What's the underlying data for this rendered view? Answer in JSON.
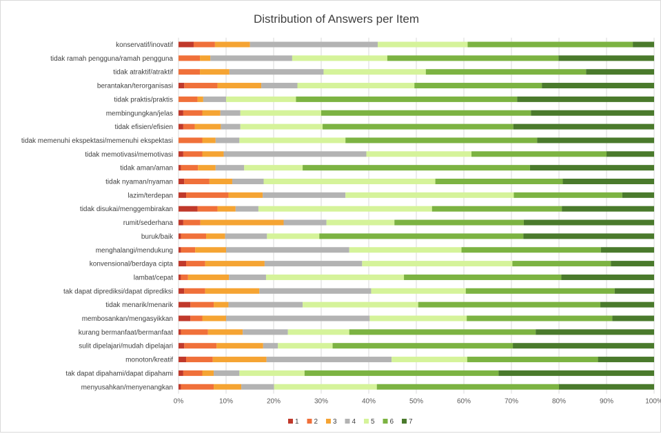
{
  "chart_data": {
    "type": "bar",
    "orientation": "horizontal",
    "stacked": "percent",
    "title": "Distribution of Answers per Item",
    "xlabel": "",
    "ylabel": "",
    "xlim": [
      0,
      100
    ],
    "x_ticks": [
      "0%",
      "10%",
      "20%",
      "30%",
      "40%",
      "50%",
      "60%",
      "70%",
      "80%",
      "90%",
      "100%"
    ],
    "grid": "vertical",
    "legend_position": "bottom",
    "categories": [
      "konservatif/inovatif",
      "tidak ramah pengguna/ramah pengguna",
      "tidak atraktif/atraktif",
      "berantakan/terorganisasi",
      "tidak praktis/praktis",
      "membingungkan/jelas",
      "tidak efisien/efisien",
      "tidak memenuhi ekspektasi/memenuhi ekspektasi",
      "tidak memotivasi/memotivasi",
      "tidak aman/aman",
      "tidak nyaman/nyaman",
      "lazim/terdepan",
      "tidak disukai/menggembirakan",
      "rumit/sederhana",
      "buruk/baik",
      "menghalangi/mendukung",
      "konvensional/berdaya cipta",
      "lambat/cepat",
      "tak dapat diprediksi/dapat diprediksi",
      "tidak menarik/menarik",
      "membosankan/mengasyikkan",
      "kurang bermanfaat/bermanfaat",
      "sulit dipelajari/mudah dipelajari",
      "monoton/kreatif",
      "tak dapat dipahami/dapat dipahami",
      "menyusahkan/menyenangkan"
    ],
    "series": [
      {
        "name": "1",
        "color": "#c0392b",
        "values": [
          3.2,
          0,
          0,
          1.2,
          0,
          1,
          1,
          0,
          1,
          0.5,
          1.2,
          1.6,
          4,
          1,
          0.5,
          0.5,
          1.6,
          0.5,
          1.2,
          2.5,
          2.5,
          0.5,
          1.2,
          1.6,
          1,
          0.5
        ]
      },
      {
        "name": "2",
        "color": "#f0703a",
        "values": [
          4.5,
          4.5,
          4.5,
          7,
          4,
          4,
          2.4,
          5,
          4,
          3.6,
          5.3,
          8.9,
          4.2,
          3.6,
          5.3,
          3,
          4,
          1.5,
          4.4,
          4.9,
          2.5,
          5.7,
          6.8,
          5.6,
          4,
          6.9
        ]
      },
      {
        "name": "3",
        "color": "#f5a433",
        "values": [
          7.4,
          2.2,
          6.2,
          9.2,
          1.2,
          3.8,
          5.5,
          2.8,
          4.5,
          3.7,
          4.8,
          7.2,
          3.8,
          17.5,
          4,
          6.5,
          12.5,
          8.6,
          11.4,
          3.1,
          5,
          7.3,
          9.8,
          11.3,
          2.4,
          5.8
        ]
      },
      {
        "name": "4",
        "color": "#b3b3b3",
        "values": [
          27,
          17.2,
          19.8,
          7.6,
          4.8,
          4.2,
          4.1,
          5,
          30,
          6,
          6.6,
          17.4,
          4.8,
          9,
          8.8,
          25.9,
          20.5,
          7.8,
          23.5,
          15.6,
          30.2,
          9.5,
          3.1,
          26.3,
          5.4,
          6.9
        ]
      },
      {
        "name": "5",
        "color": "#d5f39a",
        "values": [
          19,
          20,
          21.5,
          24.6,
          14.7,
          17,
          17.3,
          22.3,
          22.1,
          12.3,
          36.1,
          35.4,
          36.5,
          14.3,
          11,
          23.6,
          31.6,
          29,
          19.9,
          24.3,
          20.4,
          12.9,
          11.5,
          15.9,
          13.7,
          21.6
        ]
      },
      {
        "name": "6",
        "color": "#7cb342",
        "values": [
          34.9,
          36,
          33.7,
          26.8,
          46.5,
          44.1,
          40.1,
          40.3,
          28.4,
          47.8,
          26.8,
          22.8,
          27.3,
          27.2,
          42.9,
          29.3,
          20.7,
          33.1,
          31.3,
          38.3,
          30.6,
          39.2,
          37.9,
          27.5,
          40.8,
          38.3
        ]
      },
      {
        "name": "7",
        "color": "#4a7a2c",
        "values": [
          4.5,
          20.1,
          14.3,
          23.6,
          28.8,
          25.9,
          29.6,
          24.6,
          10,
          26.1,
          19.2,
          6.7,
          19.4,
          27.4,
          27.5,
          11.2,
          9.1,
          19.5,
          8.3,
          11.3,
          8.8,
          24.9,
          29.7,
          11.8,
          32.7,
          20
        ]
      }
    ]
  }
}
